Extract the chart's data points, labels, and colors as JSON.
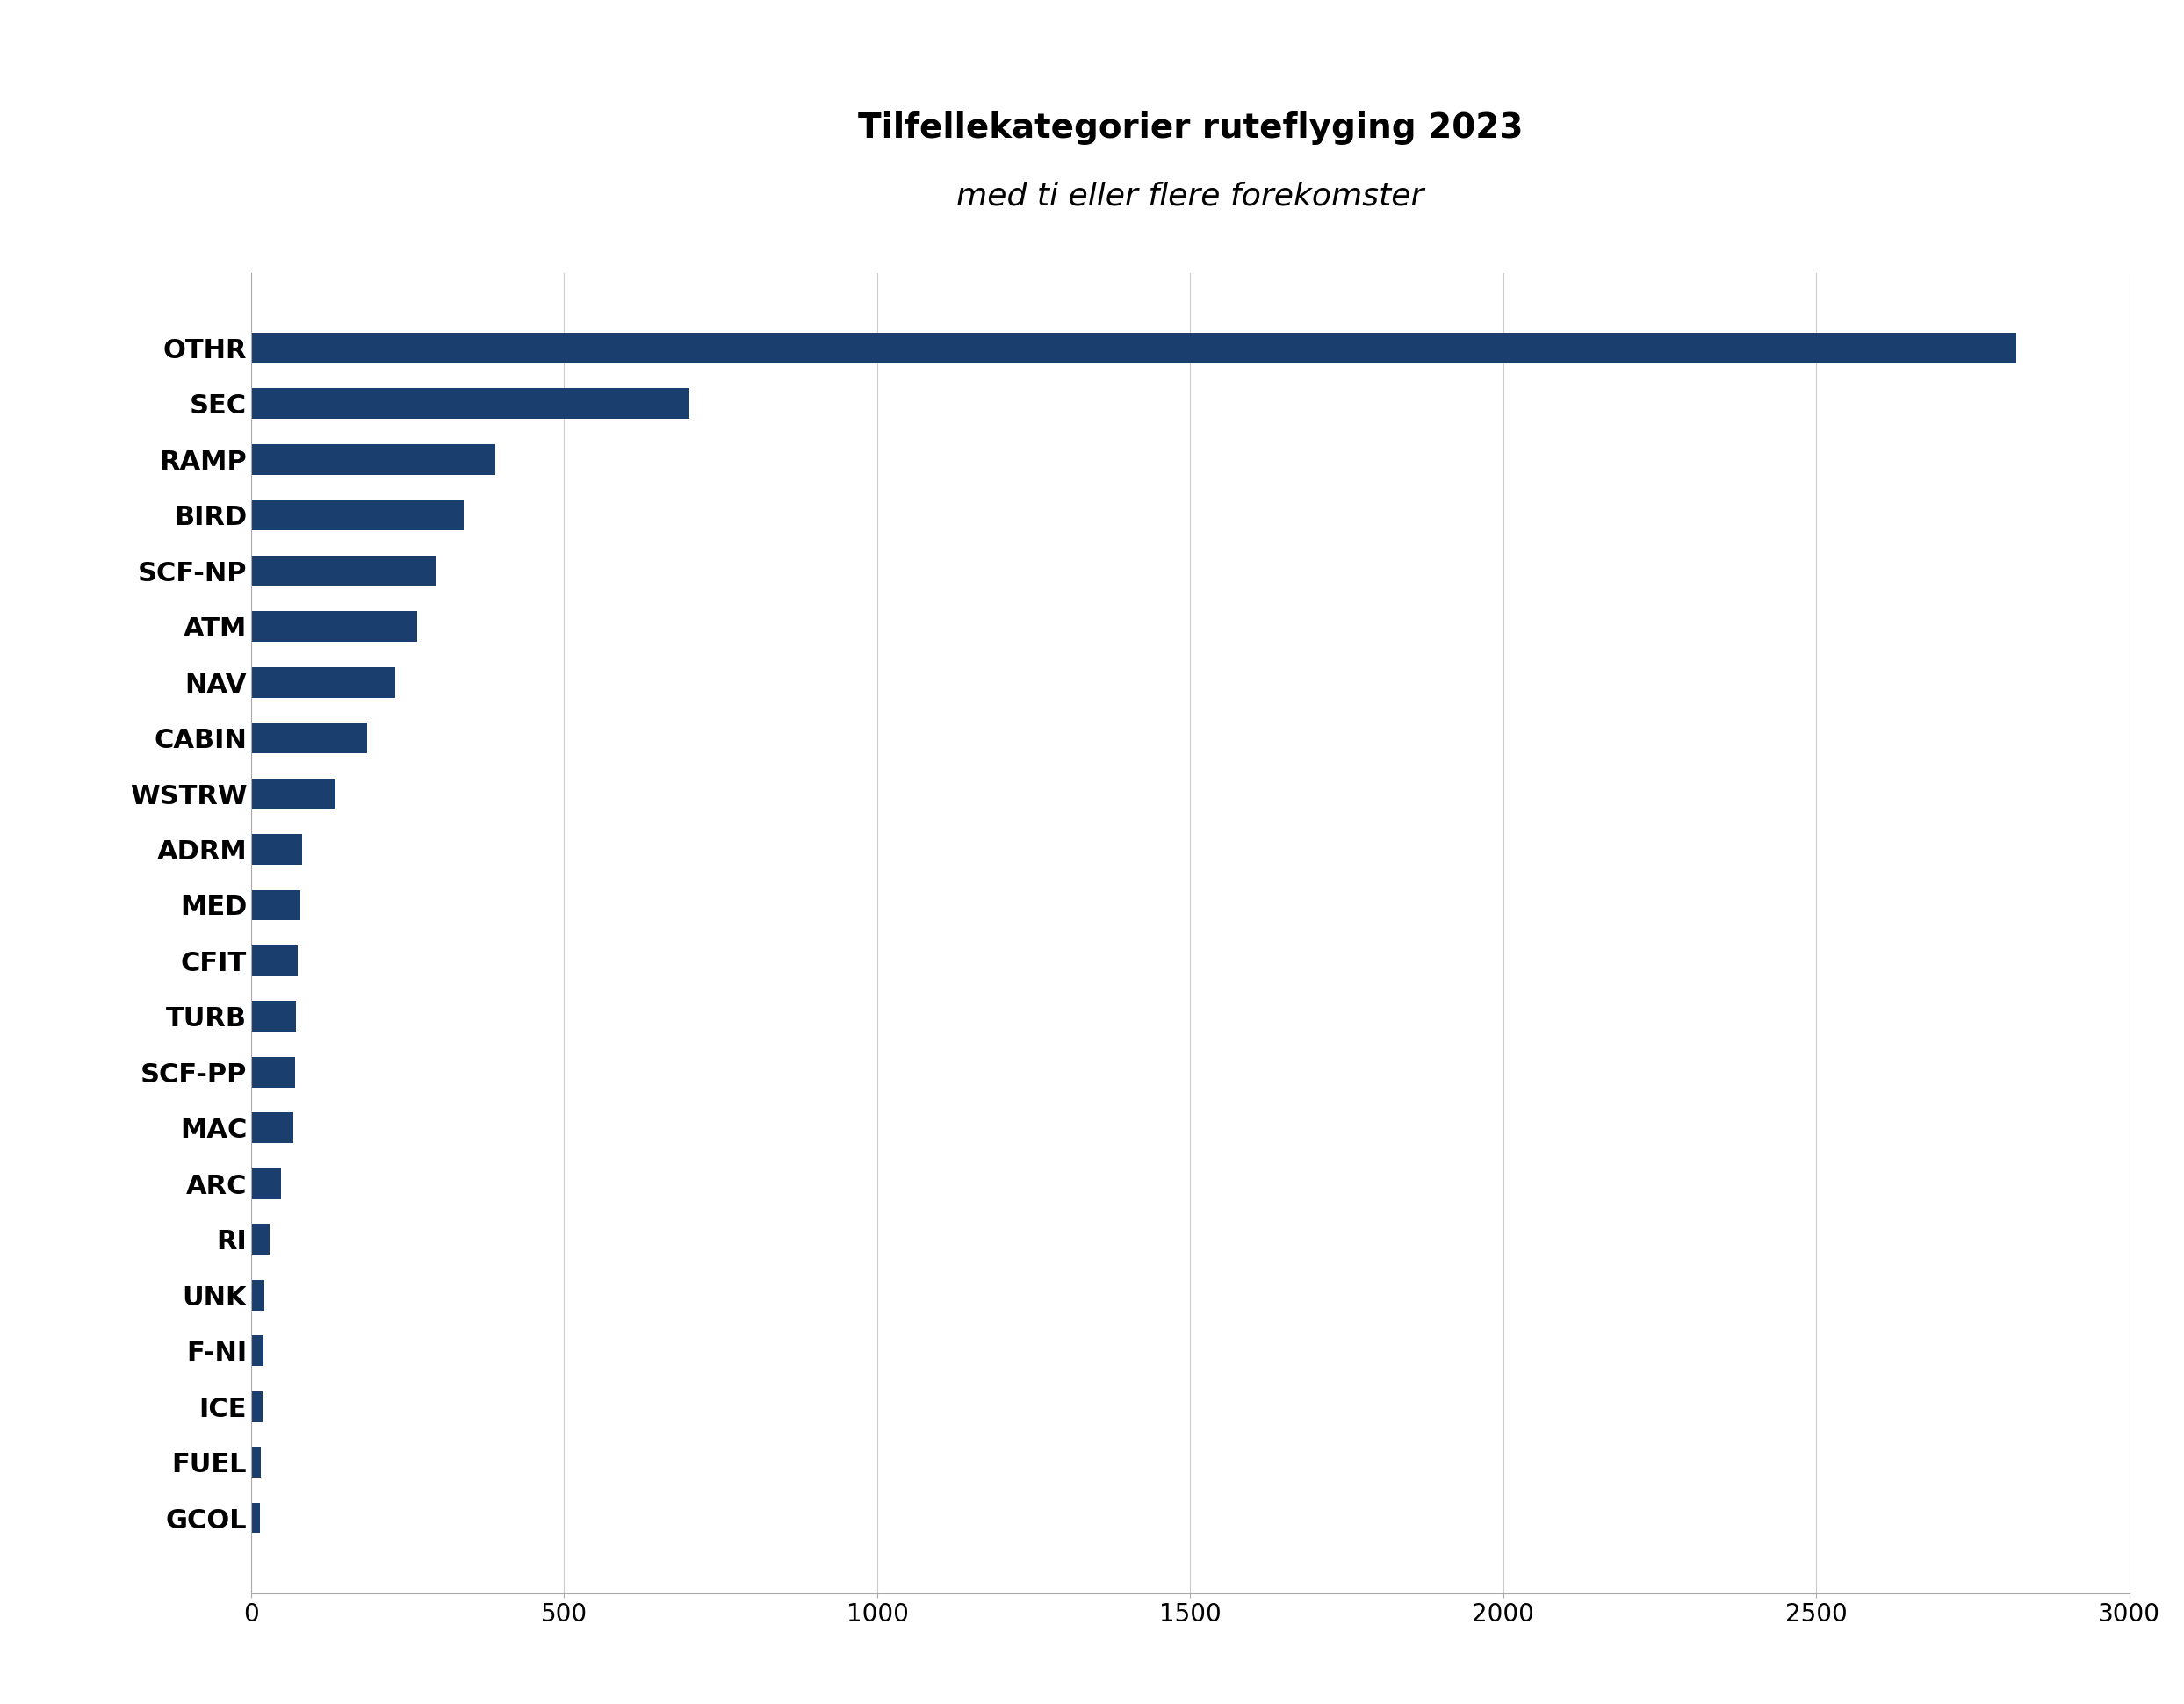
{
  "categories": [
    "OTHR",
    "SEC",
    "RAMP",
    "BIRD",
    "SCF-NP",
    "ATM",
    "NAV",
    "CABIN",
    "WSTRW",
    "ADRM",
    "MED",
    "CFIT",
    "TURB",
    "SCF-PP",
    "MAC",
    "ARC",
    "RI",
    "UNK",
    "F-NI",
    "ICE",
    "FUEL",
    "GCOL"
  ],
  "values": [
    2820,
    700,
    390,
    340,
    295,
    265,
    230,
    185,
    135,
    82,
    78,
    74,
    72,
    70,
    68,
    47,
    29,
    21,
    20,
    18,
    15,
    14
  ],
  "bar_color": "#1a3f6f",
  "title_line1": "Tilfellekategorier ruteflyging 2023",
  "title_line2": "med ti eller flere forekomster",
  "xlim": [
    0,
    3000
  ],
  "xticks": [
    0,
    500,
    1000,
    1500,
    2000,
    2500,
    3000
  ],
  "background_color": "#ffffff",
  "bar_height": 0.55,
  "title_fontsize": 28,
  "subtitle_fontsize": 26,
  "tick_fontsize": 20,
  "label_fontsize": 22
}
